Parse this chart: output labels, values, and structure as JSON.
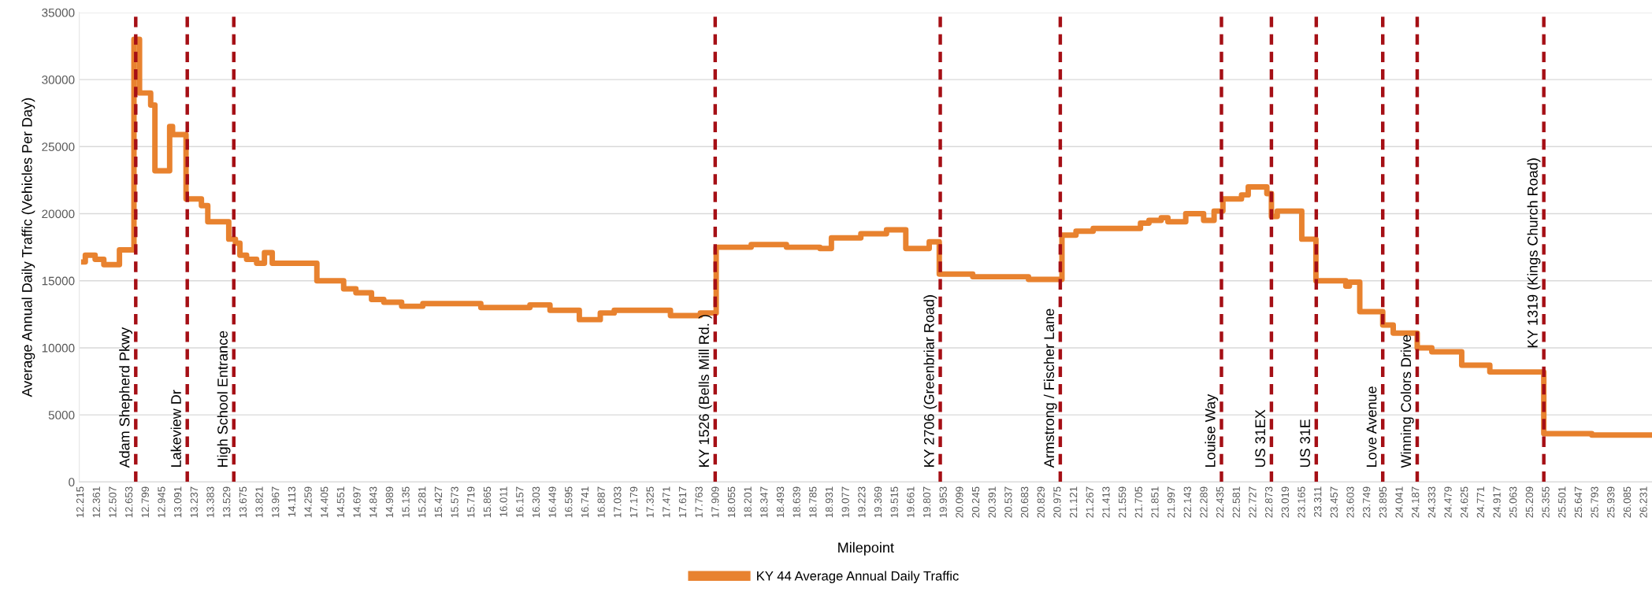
{
  "chart_data": {
    "type": "step",
    "xlabel": "Milepoint",
    "ylabel": "Average Annual Daily Traffic (Vehicles Per Day)",
    "xlim": [
      12.2,
      26.3
    ],
    "xticks": [
      12.215,
      12.361,
      12.507,
      12.653,
      12.799,
      12.945,
      13.091,
      13.237,
      13.383,
      13.529,
      13.675,
      13.821,
      13.967,
      14.113,
      14.259,
      14.405,
      14.551,
      14.697,
      14.843,
      14.989,
      15.135,
      15.281,
      15.427,
      15.573,
      15.719,
      15.865,
      16.011,
      16.157,
      16.303,
      16.449,
      16.595,
      16.741,
      16.887,
      17.033,
      17.179,
      17.325,
      17.471,
      17.617,
      17.763,
      17.909,
      18.055,
      18.201,
      18.347,
      18.493,
      18.639,
      18.785,
      18.931,
      19.077,
      19.223,
      19.369,
      19.515,
      19.661,
      19.807,
      19.953,
      20.099,
      20.245,
      20.391,
      20.537,
      20.683,
      20.829,
      20.975,
      21.121,
      21.267,
      21.413,
      21.559,
      21.705,
      21.851,
      21.997,
      22.143,
      22.289,
      22.435,
      22.581,
      22.727,
      22.873,
      23.019,
      23.165,
      23.311,
      23.457,
      23.603,
      23.749,
      23.895,
      24.041,
      24.187,
      24.333,
      24.479,
      24.625,
      24.771,
      24.917,
      25.063,
      25.209,
      25.355,
      25.501,
      25.647,
      25.793,
      25.939,
      26.085,
      26.231
    ],
    "ylim": [
      0,
      35000
    ],
    "yticks": [
      0,
      5000,
      10000,
      15000,
      20000,
      25000,
      30000,
      35000
    ],
    "grid": "y",
    "legend": "bottom",
    "line_style": "solid",
    "series": [
      {
        "name": "KY 44 Average Annual Daily Traffic",
        "color": "#e8822f",
        "x": [
          12.216,
          12.254,
          12.342,
          12.42,
          12.56,
          12.69,
          12.74,
          12.84,
          12.878,
          13.01,
          13.036,
          13.157,
          13.295,
          13.352,
          13.54,
          13.6,
          13.64,
          13.7,
          13.79,
          13.86,
          13.93,
          14.33,
          14.57,
          14.68,
          14.82,
          14.93,
          15.09,
          15.28,
          15.8,
          16.24,
          16.42,
          16.683,
          16.871,
          16.996,
          17.26,
          17.5,
          17.768,
          17.91,
          18.224,
          18.54,
          18.84,
          18.943,
          19.207,
          19.437,
          19.61,
          19.82,
          19.91,
          20.21,
          20.71,
          21.01,
          21.136,
          21.29,
          21.635,
          21.714,
          21.79,
          21.9,
          21.96,
          22.12,
          22.28,
          22.374,
          22.453,
          22.62,
          22.68,
          22.847,
          22.888,
          22.94,
          23.16,
          23.287,
          23.555,
          23.587,
          23.68,
          23.886,
          23.98,
          24.195,
          24.326,
          24.594,
          24.846,
          25.33,
          25.76,
          26.3
        ],
        "values": [
          16400,
          16900,
          16600,
          16200,
          17300,
          33000,
          29000,
          28100,
          23200,
          26500,
          25900,
          21100,
          20600,
          19400,
          18100,
          17800,
          16900,
          16600,
          16300,
          17100,
          16300,
          15000,
          14400,
          14100,
          13600,
          13400,
          13100,
          13300,
          13000,
          13200,
          12800,
          12100,
          12600,
          12800,
          12800,
          12400,
          12600,
          17500,
          17700,
          17500,
          17400,
          18200,
          18500,
          18800,
          17400,
          17900,
          15500,
          15300,
          15100,
          18400,
          18700,
          18900,
          18900,
          19300,
          19500,
          19700,
          19400,
          20000,
          19500,
          20200,
          21100,
          21400,
          22000,
          21500,
          19800,
          20200,
          18100,
          15000,
          14600,
          14900,
          12700,
          11700,
          11100,
          10000,
          9700,
          8700,
          8200,
          3600,
          3500,
          3500
        ]
      }
    ],
    "ref_lines": [
      {
        "axis": "x",
        "value": 12.706,
        "label": "Adam Shepherd Pkwy",
        "color": "#a50f15",
        "line_style": "dashed"
      },
      {
        "axis": "x",
        "value": 13.168,
        "label": "Lakeview Dr",
        "color": "#a50f15",
        "line_style": "dashed"
      },
      {
        "axis": "x",
        "value": 13.585,
        "label": "High School Entrance",
        "color": "#a50f15",
        "line_style": "dashed"
      },
      {
        "axis": "x",
        "value": 17.901,
        "label": "KY 1526 (Bells Mill Rd. )",
        "color": "#a50f15",
        "line_style": "dashed"
      },
      {
        "axis": "x",
        "value": 19.919,
        "label": "KY 2706 (Greenbriar Road)",
        "color": "#a50f15",
        "line_style": "dashed"
      },
      {
        "axis": "x",
        "value": 20.995,
        "label": "Armstrong / Fischer Lane",
        "color": "#a50f15",
        "line_style": "dashed"
      },
      {
        "axis": "x",
        "value": 22.44,
        "label": "Louise Way",
        "color": "#a50f15",
        "line_style": "dashed"
      },
      {
        "axis": "x",
        "value": 22.888,
        "label": "US 31EX",
        "color": "#a50f15",
        "line_style": "dashed"
      },
      {
        "axis": "x",
        "value": 23.29,
        "label": "US 31E",
        "color": "#a50f15",
        "line_style": "dashed"
      },
      {
        "axis": "x",
        "value": 23.886,
        "label": "Love Avenue",
        "color": "#a50f15",
        "line_style": "dashed"
      },
      {
        "axis": "x",
        "value": 24.195,
        "label": "Winning Colors Drive",
        "color": "#a50f15",
        "line_style": "dashed"
      },
      {
        "axis": "x",
        "value": 25.33,
        "label": "KY 1319 (Kings Church Road)",
        "color": "#a50f15",
        "line_style": "dashed"
      }
    ]
  }
}
